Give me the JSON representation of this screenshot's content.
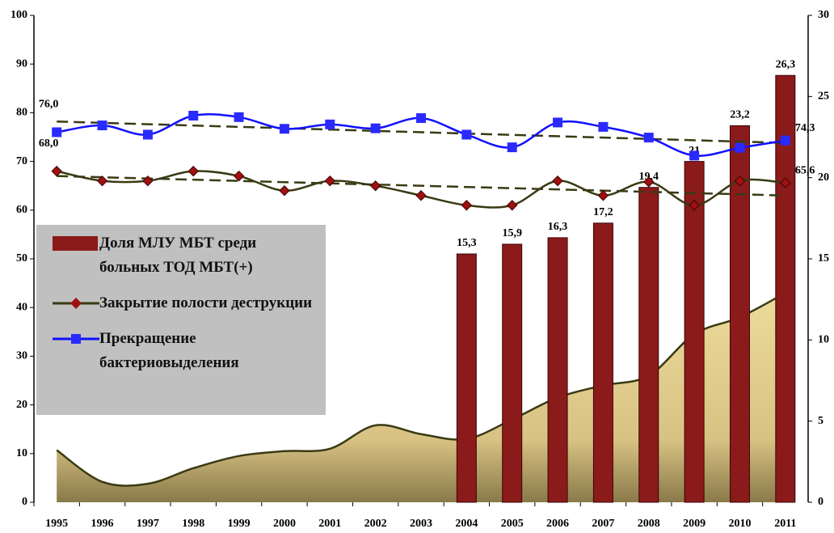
{
  "chart_data": {
    "type": "combo",
    "categories": [
      "1995",
      "1996",
      "1997",
      "1998",
      "1999",
      "2000",
      "2001",
      "2002",
      "2003",
      "2004",
      "2005",
      "2006",
      "2007",
      "2008",
      "2009",
      "2010",
      "2011"
    ],
    "ylim": [
      0,
      100
    ],
    "yticks": [
      0,
      10,
      20,
      30,
      40,
      50,
      60,
      70,
      80,
      90,
      100
    ],
    "y2lim": [
      0,
      30
    ],
    "y2ticks": [
      0,
      5,
      10,
      15,
      20,
      25,
      30
    ],
    "series": [
      {
        "type": "area",
        "color": "#e3d08c",
        "values": [
          10.7,
          4.2,
          3.8,
          7,
          9.5,
          10.5,
          11,
          15.8,
          14,
          13,
          17,
          21.5,
          24,
          26,
          34.5,
          38,
          43
        ]
      },
      {
        "type": "bar",
        "axis": "y2",
        "name": "Доля МЛУ МБТ среди больных ТОД МБТ(+)",
        "color": "#8b1a1a",
        "values": [
          null,
          null,
          null,
          null,
          null,
          null,
          null,
          null,
          null,
          15.3,
          15.9,
          16.3,
          17.2,
          19.4,
          21,
          23.2,
          26.3
        ],
        "value_labels": [
          null,
          null,
          null,
          null,
          null,
          null,
          null,
          null,
          null,
          "15,3",
          "15,9",
          "16,3",
          "17,2",
          "19,4",
          "21",
          "23,2",
          "26,3"
        ]
      },
      {
        "type": "line",
        "marker": "diamond",
        "name": "Закрытие полости деструкции",
        "color": "#3a3a14",
        "marker_color": "#a01010",
        "values": [
          68,
          66,
          66,
          68,
          67,
          64,
          66,
          65,
          63,
          61,
          61,
          66,
          63,
          65.8,
          61,
          66,
          65.6
        ],
        "value_labels": [
          "68,0",
          null,
          null,
          null,
          null,
          null,
          null,
          null,
          null,
          null,
          null,
          null,
          null,
          null,
          null,
          null,
          "65,6"
        ],
        "trend": [
          67,
          63
        ]
      },
      {
        "type": "line",
        "marker": "square",
        "name": "Прекращение бактериовыделения",
        "color": "#1010ff",
        "marker_color": "#2a2aff",
        "values": [
          76,
          77.4,
          75.5,
          79.4,
          79.1,
          76.7,
          77.6,
          76.8,
          78.9,
          75.5,
          72.9,
          78,
          77.1,
          74.9,
          71.2,
          72.8,
          74.3
        ],
        "value_labels": [
          "76,0",
          null,
          null,
          null,
          null,
          null,
          null,
          null,
          null,
          null,
          null,
          null,
          null,
          null,
          null,
          null,
          "74,3"
        ],
        "trend": [
          78.2,
          73.8
        ]
      }
    ]
  }
}
